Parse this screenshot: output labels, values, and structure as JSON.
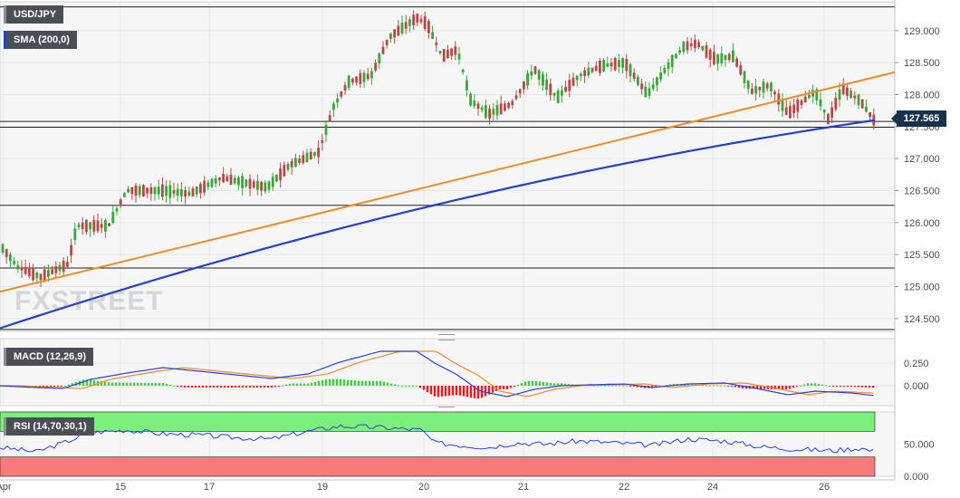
{
  "chart_data": [
    {
      "type": "candlestick",
      "pair_label": "USD/JPY",
      "indicator_label": "SMA (200,0)",
      "current_price": "127.565",
      "x_tick_labels": [
        "Apr",
        "15",
        "17",
        "19",
        "20",
        "21",
        "22",
        "24",
        "26"
      ],
      "y_tick_labels": [
        "129.000",
        "128.500",
        "128.000",
        "127.500",
        "127.000",
        "126.500",
        "126.000",
        "125.500",
        "125.000",
        "124.500"
      ],
      "ylim": [
        124.3,
        129.45
      ],
      "horizontal_levels": [
        129.37,
        127.58,
        127.49,
        126.27,
        125.29,
        124.33
      ],
      "trendline": {
        "start_value": 124.92,
        "end_value": 128.35
      },
      "sma_200_start_end": [
        124.35,
        127.6
      ],
      "watermark": "FXSTREET",
      "colors": {
        "up": "#3aa63a",
        "down": "#b74848",
        "sma": "#1f3fd6",
        "trend": "#f08a24",
        "badge": "#173149"
      }
    },
    {
      "type": "line",
      "name": "MACD (12,26,9)",
      "y_tick_labels": [
        "0.250",
        "0.000"
      ],
      "ylim": [
        -0.22,
        0.52
      ],
      "histogram": "green above zero, red below zero",
      "colors": {
        "macd": "#2a3fdc",
        "signal": "#f08a24",
        "hist_up": "#3ecf3e",
        "hist_down": "#e02020"
      }
    },
    {
      "type": "line",
      "name": "RSI (14,70,30,1)",
      "y_tick_labels": [
        "50.000",
        "0.000"
      ],
      "ylim": [
        0,
        100
      ],
      "zones": {
        "overbought": 70,
        "oversold": 30
      },
      "colors": {
        "rsi": "#2a3fdc",
        "overbought": "#7cf07c",
        "oversold": "#f77b7b"
      }
    }
  ]
}
